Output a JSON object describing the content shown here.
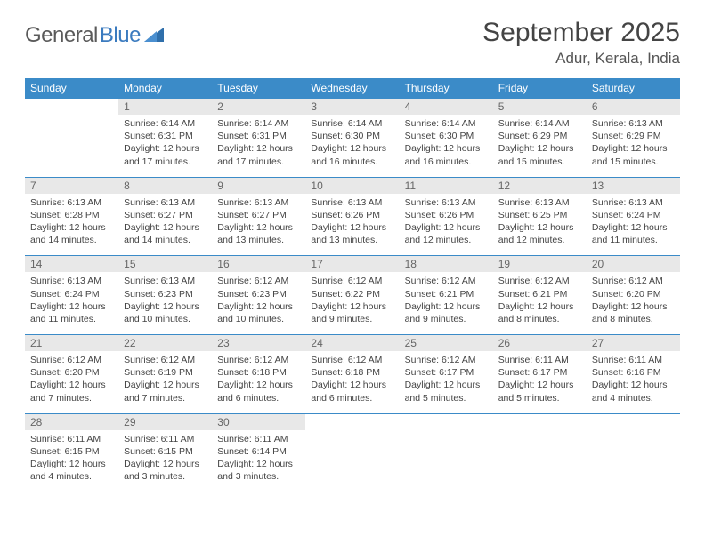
{
  "logo": {
    "text1": "General",
    "text2": "Blue"
  },
  "title": "September 2025",
  "location": "Adur, Kerala, India",
  "colors": {
    "header_bg": "#3b8bc8",
    "header_text": "#ffffff",
    "daynum_bg": "#e8e8e8",
    "daynum_text": "#666666",
    "row_border": "#3b8bc8",
    "body_text": "#444444",
    "logo_gray": "#5a5a5a",
    "logo_blue": "#3b7bbf"
  },
  "day_headers": [
    "Sunday",
    "Monday",
    "Tuesday",
    "Wednesday",
    "Thursday",
    "Friday",
    "Saturday"
  ],
  "weeks": [
    {
      "nums": [
        "",
        "1",
        "2",
        "3",
        "4",
        "5",
        "6"
      ],
      "cells": [
        null,
        {
          "sr": "Sunrise: 6:14 AM",
          "ss": "Sunset: 6:31 PM",
          "dl": "Daylight: 12 hours and 17 minutes."
        },
        {
          "sr": "Sunrise: 6:14 AM",
          "ss": "Sunset: 6:31 PM",
          "dl": "Daylight: 12 hours and 17 minutes."
        },
        {
          "sr": "Sunrise: 6:14 AM",
          "ss": "Sunset: 6:30 PM",
          "dl": "Daylight: 12 hours and 16 minutes."
        },
        {
          "sr": "Sunrise: 6:14 AM",
          "ss": "Sunset: 6:30 PM",
          "dl": "Daylight: 12 hours and 16 minutes."
        },
        {
          "sr": "Sunrise: 6:14 AM",
          "ss": "Sunset: 6:29 PM",
          "dl": "Daylight: 12 hours and 15 minutes."
        },
        {
          "sr": "Sunrise: 6:13 AM",
          "ss": "Sunset: 6:29 PM",
          "dl": "Daylight: 12 hours and 15 minutes."
        }
      ]
    },
    {
      "nums": [
        "7",
        "8",
        "9",
        "10",
        "11",
        "12",
        "13"
      ],
      "cells": [
        {
          "sr": "Sunrise: 6:13 AM",
          "ss": "Sunset: 6:28 PM",
          "dl": "Daylight: 12 hours and 14 minutes."
        },
        {
          "sr": "Sunrise: 6:13 AM",
          "ss": "Sunset: 6:27 PM",
          "dl": "Daylight: 12 hours and 14 minutes."
        },
        {
          "sr": "Sunrise: 6:13 AM",
          "ss": "Sunset: 6:27 PM",
          "dl": "Daylight: 12 hours and 13 minutes."
        },
        {
          "sr": "Sunrise: 6:13 AM",
          "ss": "Sunset: 6:26 PM",
          "dl": "Daylight: 12 hours and 13 minutes."
        },
        {
          "sr": "Sunrise: 6:13 AM",
          "ss": "Sunset: 6:26 PM",
          "dl": "Daylight: 12 hours and 12 minutes."
        },
        {
          "sr": "Sunrise: 6:13 AM",
          "ss": "Sunset: 6:25 PM",
          "dl": "Daylight: 12 hours and 12 minutes."
        },
        {
          "sr": "Sunrise: 6:13 AM",
          "ss": "Sunset: 6:24 PM",
          "dl": "Daylight: 12 hours and 11 minutes."
        }
      ]
    },
    {
      "nums": [
        "14",
        "15",
        "16",
        "17",
        "18",
        "19",
        "20"
      ],
      "cells": [
        {
          "sr": "Sunrise: 6:13 AM",
          "ss": "Sunset: 6:24 PM",
          "dl": "Daylight: 12 hours and 11 minutes."
        },
        {
          "sr": "Sunrise: 6:13 AM",
          "ss": "Sunset: 6:23 PM",
          "dl": "Daylight: 12 hours and 10 minutes."
        },
        {
          "sr": "Sunrise: 6:12 AM",
          "ss": "Sunset: 6:23 PM",
          "dl": "Daylight: 12 hours and 10 minutes."
        },
        {
          "sr": "Sunrise: 6:12 AM",
          "ss": "Sunset: 6:22 PM",
          "dl": "Daylight: 12 hours and 9 minutes."
        },
        {
          "sr": "Sunrise: 6:12 AM",
          "ss": "Sunset: 6:21 PM",
          "dl": "Daylight: 12 hours and 9 minutes."
        },
        {
          "sr": "Sunrise: 6:12 AM",
          "ss": "Sunset: 6:21 PM",
          "dl": "Daylight: 12 hours and 8 minutes."
        },
        {
          "sr": "Sunrise: 6:12 AM",
          "ss": "Sunset: 6:20 PM",
          "dl": "Daylight: 12 hours and 8 minutes."
        }
      ]
    },
    {
      "nums": [
        "21",
        "22",
        "23",
        "24",
        "25",
        "26",
        "27"
      ],
      "cells": [
        {
          "sr": "Sunrise: 6:12 AM",
          "ss": "Sunset: 6:20 PM",
          "dl": "Daylight: 12 hours and 7 minutes."
        },
        {
          "sr": "Sunrise: 6:12 AM",
          "ss": "Sunset: 6:19 PM",
          "dl": "Daylight: 12 hours and 7 minutes."
        },
        {
          "sr": "Sunrise: 6:12 AM",
          "ss": "Sunset: 6:18 PM",
          "dl": "Daylight: 12 hours and 6 minutes."
        },
        {
          "sr": "Sunrise: 6:12 AM",
          "ss": "Sunset: 6:18 PM",
          "dl": "Daylight: 12 hours and 6 minutes."
        },
        {
          "sr": "Sunrise: 6:12 AM",
          "ss": "Sunset: 6:17 PM",
          "dl": "Daylight: 12 hours and 5 minutes."
        },
        {
          "sr": "Sunrise: 6:11 AM",
          "ss": "Sunset: 6:17 PM",
          "dl": "Daylight: 12 hours and 5 minutes."
        },
        {
          "sr": "Sunrise: 6:11 AM",
          "ss": "Sunset: 6:16 PM",
          "dl": "Daylight: 12 hours and 4 minutes."
        }
      ]
    },
    {
      "nums": [
        "28",
        "29",
        "30",
        "",
        "",
        "",
        ""
      ],
      "cells": [
        {
          "sr": "Sunrise: 6:11 AM",
          "ss": "Sunset: 6:15 PM",
          "dl": "Daylight: 12 hours and 4 minutes."
        },
        {
          "sr": "Sunrise: 6:11 AM",
          "ss": "Sunset: 6:15 PM",
          "dl": "Daylight: 12 hours and 3 minutes."
        },
        {
          "sr": "Sunrise: 6:11 AM",
          "ss": "Sunset: 6:14 PM",
          "dl": "Daylight: 12 hours and 3 minutes."
        },
        null,
        null,
        null,
        null
      ]
    }
  ]
}
